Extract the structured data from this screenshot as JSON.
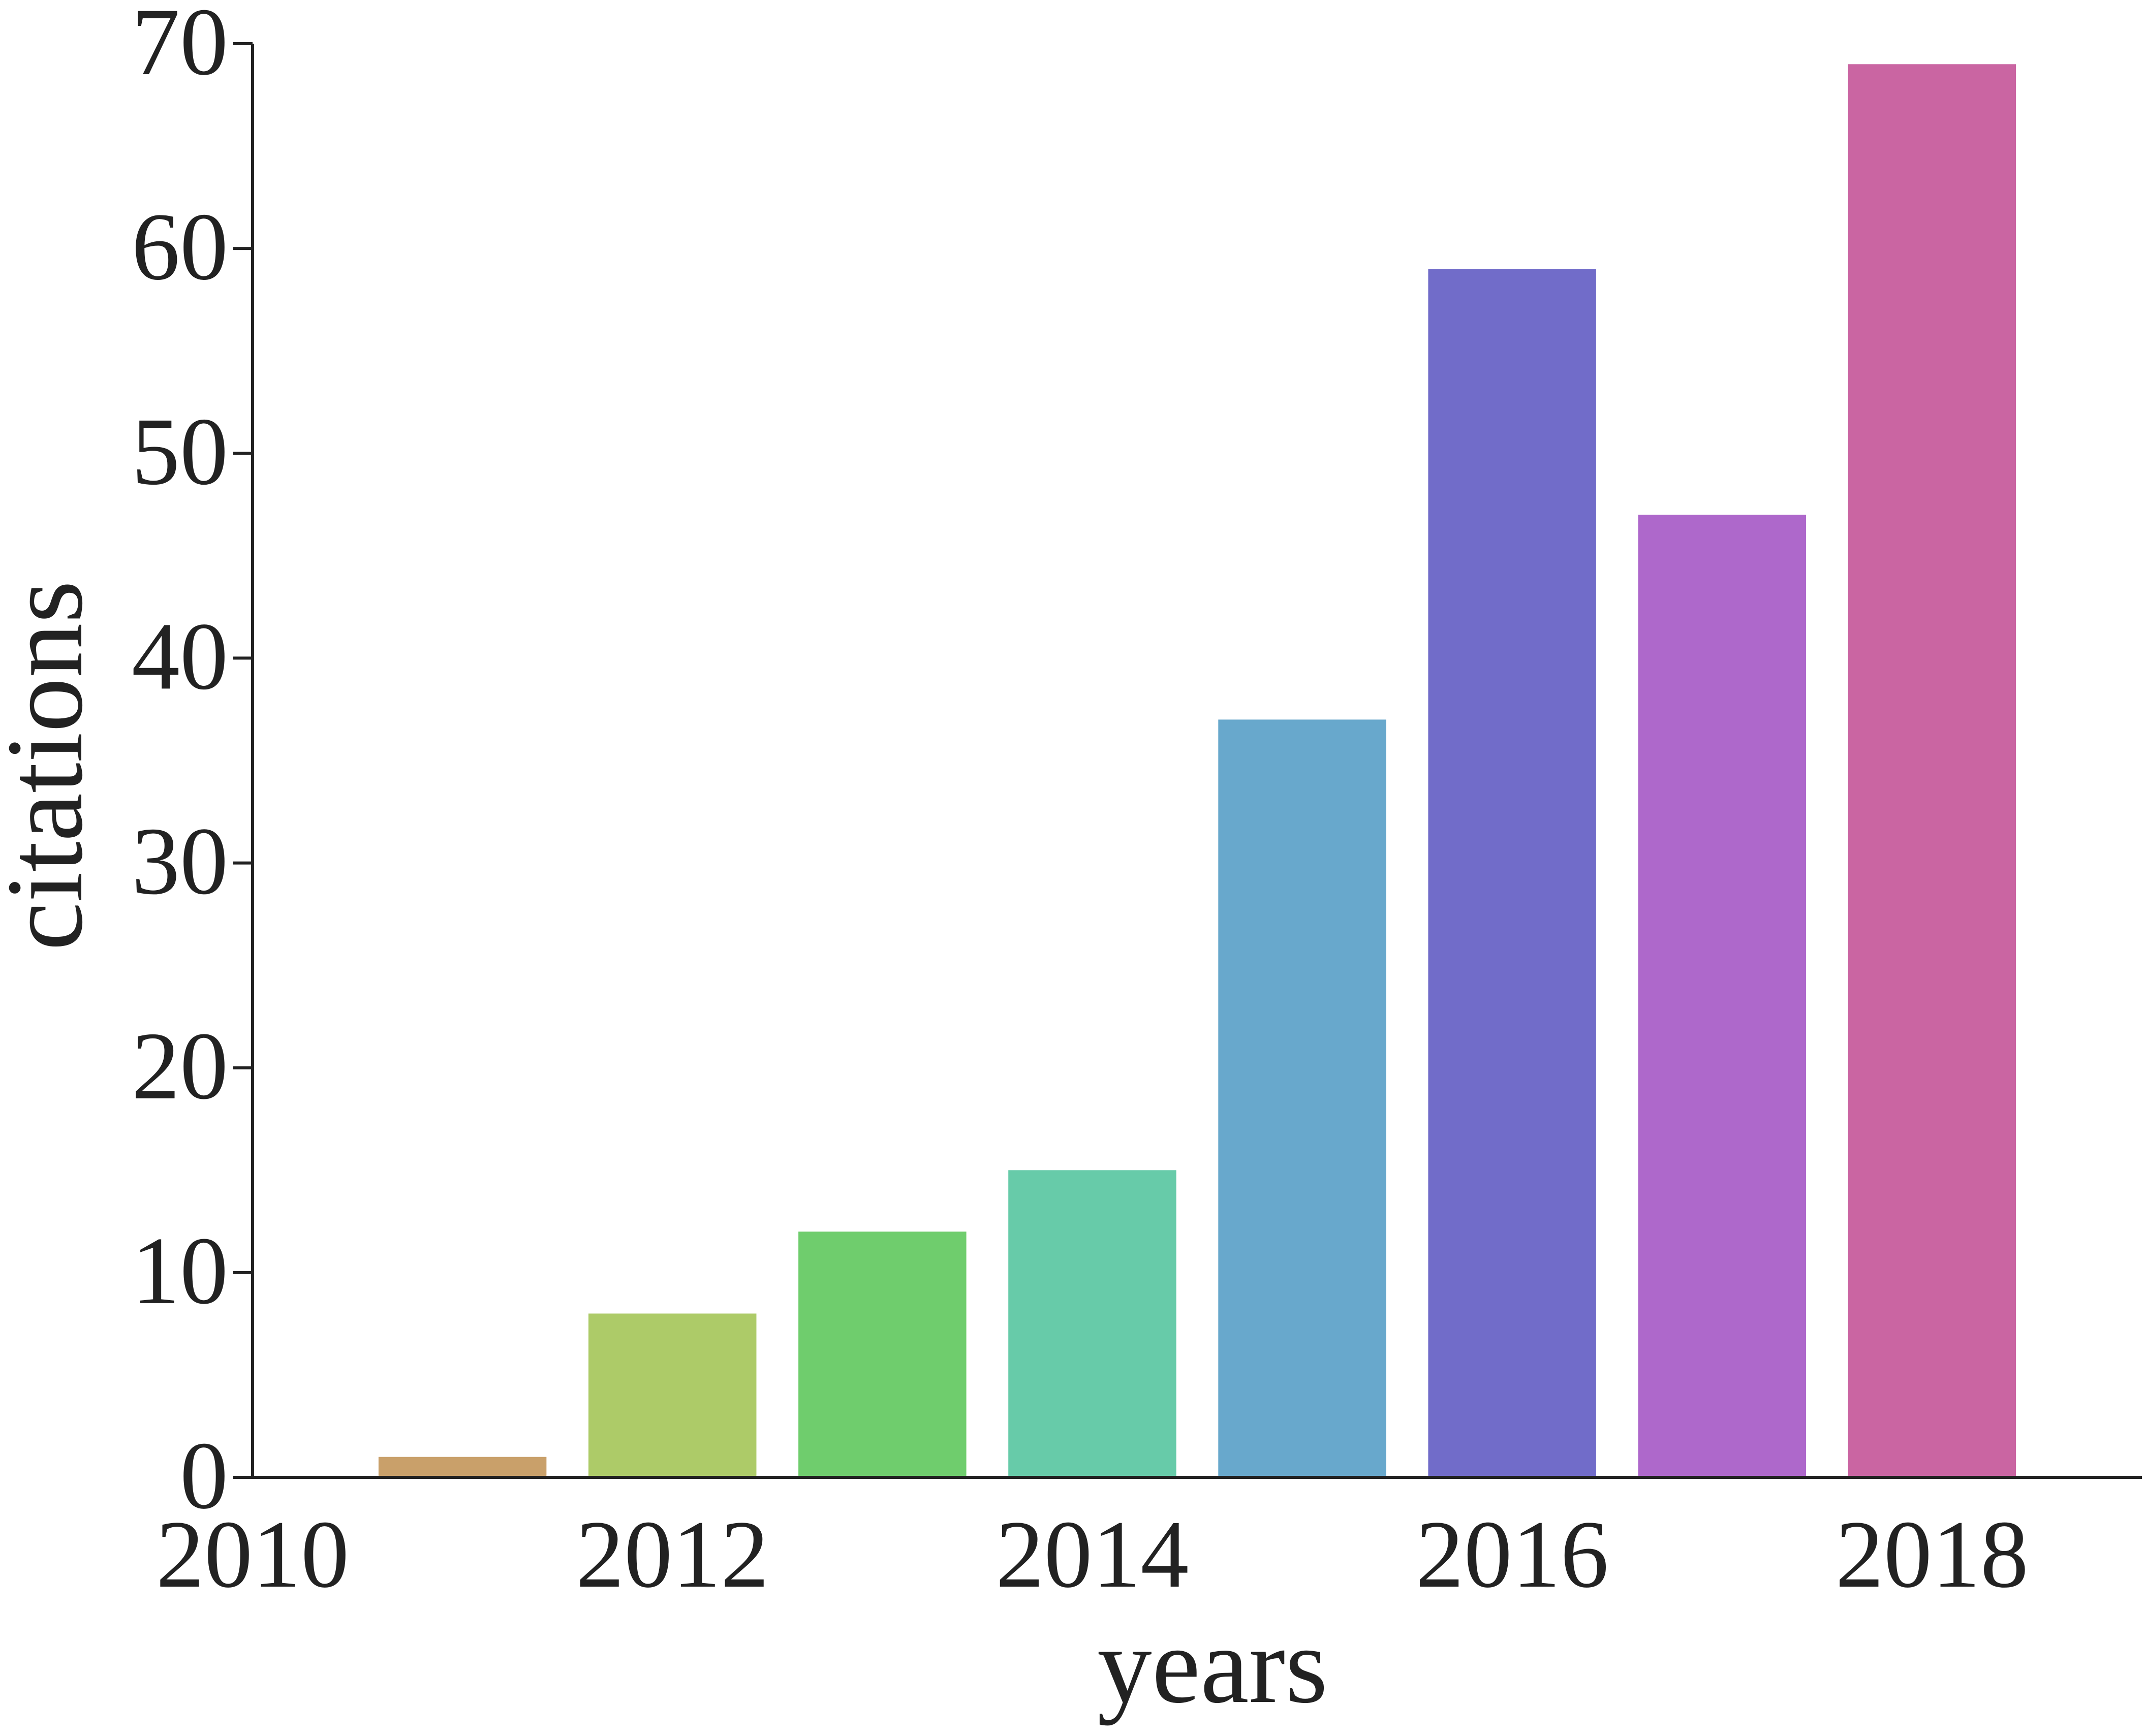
{
  "chart_data": {
    "type": "bar",
    "title": "",
    "xlabel": "years",
    "ylabel": "citations",
    "x": [
      2011,
      2012,
      2013,
      2014,
      2015,
      2016,
      2017,
      2018
    ],
    "values": [
      1,
      8,
      12,
      15,
      37,
      59,
      47,
      69
    ],
    "colors": [
      "#c9a06a",
      "#adcb68",
      "#6fcd6d",
      "#67cba9",
      "#68a8cc",
      "#716cc9",
      "#ae68cb",
      "#ca65a2"
    ],
    "xlim": [
      2010,
      2019
    ],
    "ylim": [
      0,
      70
    ],
    "xticks": [
      2010,
      2012,
      2014,
      2016,
      2018
    ],
    "yticks": [
      0,
      10,
      20,
      30,
      40,
      50,
      60,
      70
    ],
    "grid": false,
    "legend": "none"
  }
}
